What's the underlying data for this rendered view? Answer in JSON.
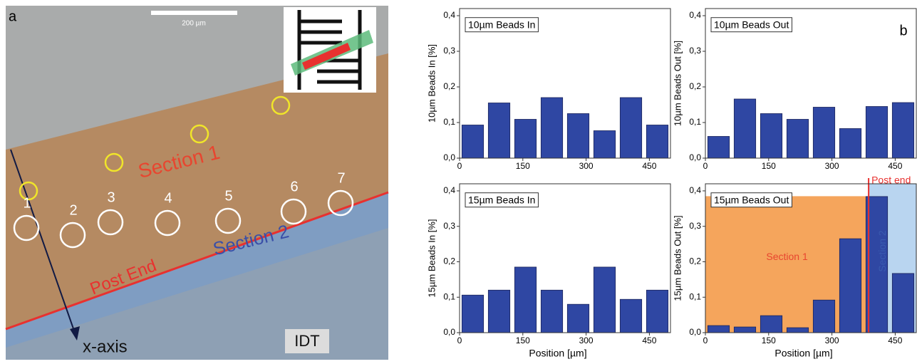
{
  "panel_a": {
    "label": "a",
    "scale_bar": "200 µm",
    "section_1": "Section 1",
    "section_2": "Section 2",
    "post_end": "Post End",
    "axis": "x-axis",
    "idt": "IDT",
    "circle_numbers": [
      "1",
      "2",
      "3",
      "4",
      "5",
      "6",
      "7"
    ]
  },
  "panel_b_label": "b",
  "chart_data": [
    {
      "type": "bar",
      "title": "10µm Beads In",
      "ylabel": "10µm Beads In [%]",
      "color": "#2f47a3",
      "x": [
        31.25,
        93.75,
        156.25,
        218.75,
        281.25,
        343.75,
        406.25,
        468.75
      ],
      "values": [
        0.093,
        0.155,
        0.109,
        0.17,
        0.125,
        0.077,
        0.17,
        0.093
      ],
      "xlim": [
        0,
        500
      ],
      "ylim": [
        0,
        0.42
      ],
      "xticks": [
        0,
        150,
        300,
        450
      ],
      "yticks": [
        {
          "value": 0,
          "label": "0,0"
        },
        {
          "value": 0.1,
          "label": "0,1"
        },
        {
          "value": 0.2,
          "label": "0,2"
        },
        {
          "value": 0.3,
          "label": "0,3"
        },
        {
          "value": 0.4,
          "label": "0,4"
        }
      ]
    },
    {
      "type": "bar",
      "title": "10µm Beads Out",
      "ylabel": "10µm Beads Out [%]",
      "color": "#2f47a3",
      "x": [
        31.25,
        93.75,
        156.25,
        218.75,
        281.25,
        343.75,
        406.25,
        468.75
      ],
      "values": [
        0.061,
        0.166,
        0.125,
        0.109,
        0.143,
        0.083,
        0.145,
        0.156
      ],
      "xlim": [
        0,
        500
      ],
      "ylim": [
        0,
        0.42
      ],
      "xticks": [
        0,
        150,
        300,
        450
      ],
      "yticks": [
        {
          "value": 0,
          "label": "0,0"
        },
        {
          "value": 0.1,
          "label": "0,1"
        },
        {
          "value": 0.2,
          "label": "0,2"
        },
        {
          "value": 0.3,
          "label": "0,3"
        },
        {
          "value": 0.4,
          "label": "0,4"
        }
      ]
    },
    {
      "type": "bar",
      "title": "15µm Beads In",
      "ylabel": "15µm Beads In [%]",
      "xlabel": "Position [µm]",
      "color": "#2f47a3",
      "x": [
        31.25,
        93.75,
        156.25,
        218.75,
        281.25,
        343.75,
        406.25,
        468.75
      ],
      "values": [
        0.106,
        0.12,
        0.185,
        0.12,
        0.08,
        0.185,
        0.094,
        0.12
      ],
      "xlim": [
        0,
        500
      ],
      "ylim": [
        0,
        0.42
      ],
      "xticks": [
        0,
        150,
        300,
        450
      ],
      "yticks": [
        {
          "value": 0,
          "label": "0,0"
        },
        {
          "value": 0.1,
          "label": "0,1"
        },
        {
          "value": 0.2,
          "label": "0,2"
        },
        {
          "value": 0.3,
          "label": "0,3"
        },
        {
          "value": 0.4,
          "label": "0,4"
        }
      ]
    },
    {
      "type": "bar",
      "title": "15µm Beads Out",
      "ylabel": "15µm Beads Out [%]",
      "xlabel": "Position [µm]",
      "color": "#2f47a3",
      "x": [
        31.25,
        93.75,
        156.25,
        218.75,
        281.25,
        343.75,
        406.25,
        468.75
      ],
      "values": [
        0.02,
        0.016,
        0.048,
        0.014,
        0.092,
        0.265,
        0.384,
        0.167
      ],
      "xlim": [
        0,
        500
      ],
      "ylim": [
        0,
        0.42
      ],
      "xticks": [
        0,
        150,
        300,
        450
      ],
      "yticks": [
        {
          "value": 0,
          "label": "0,0"
        },
        {
          "value": 0.1,
          "label": "0,1"
        },
        {
          "value": 0.2,
          "label": "0,2"
        },
        {
          "value": 0.3,
          "label": "0,3"
        },
        {
          "value": 0.4,
          "label": "0,4"
        }
      ],
      "regions": [
        {
          "label": "Section 1",
          "color": "#f5a55c",
          "x": [
            0,
            387
          ],
          "y": [
            0,
            0.385
          ]
        },
        {
          "label": "Section 2",
          "color": "#b9d5f0",
          "x": [
            387,
            500
          ],
          "y": [
            0,
            0.42
          ]
        }
      ],
      "vline": {
        "label": "Post end",
        "x": 387,
        "color": "#e8312f"
      }
    }
  ]
}
